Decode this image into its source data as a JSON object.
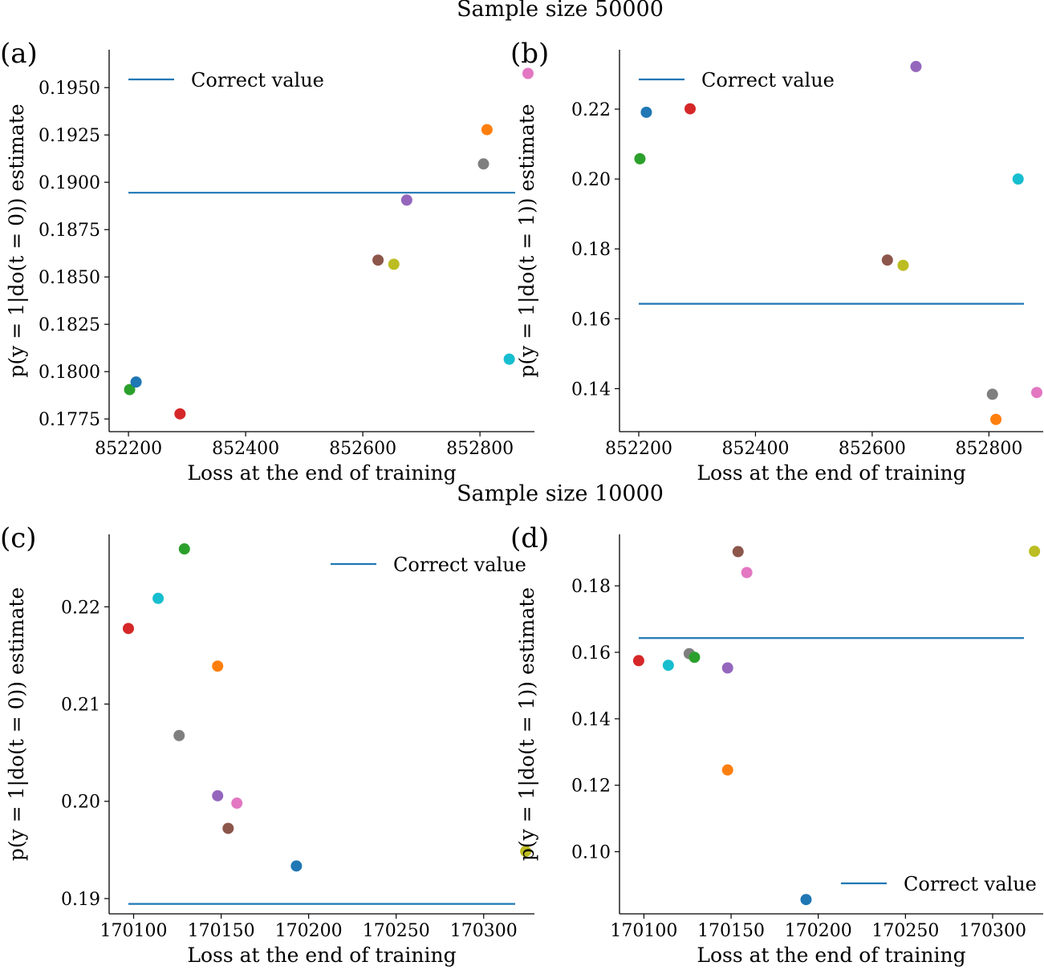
{
  "suptitles": [
    "Sample size 50000",
    "Sample size 10000"
  ],
  "reference_color": "#1f77b4",
  "chart_data": [
    {
      "panel": "(a)",
      "type": "scatter",
      "xlabel": "Loss at the end of training",
      "ylabel": "p(y = 1|do(t = 0)) estimate",
      "xlim": [
        852167,
        852893
      ],
      "ylim": [
        0.17683,
        0.197
      ],
      "xticks": [
        852200,
        852400,
        852600,
        852800
      ],
      "yticks": [
        0.1775,
        0.18,
        0.1825,
        0.185,
        0.1875,
        0.19,
        0.1925,
        0.195
      ],
      "ytick_decimals": 4,
      "reference_line": {
        "label": "Correct value",
        "y": 0.18945
      },
      "legend_position": "top-left",
      "points": [
        {
          "x": 852202,
          "y": 0.17905,
          "color": "#2ca02c"
        },
        {
          "x": 852213,
          "y": 0.17945,
          "color": "#1f77b4"
        },
        {
          "x": 852288,
          "y": 0.17777,
          "color": "#d62728"
        },
        {
          "x": 852626,
          "y": 0.18589,
          "color": "#8c564b"
        },
        {
          "x": 852653,
          "y": 0.18567,
          "color": "#bcbd22"
        },
        {
          "x": 852675,
          "y": 0.18906,
          "color": "#9467bd"
        },
        {
          "x": 852806,
          "y": 0.19097,
          "color": "#7f7f7f"
        },
        {
          "x": 852812,
          "y": 0.19278,
          "color": "#ff7f0e"
        },
        {
          "x": 852850,
          "y": 0.18066,
          "color": "#17becf"
        },
        {
          "x": 852882,
          "y": 0.19575,
          "color": "#e377c2"
        }
      ]
    },
    {
      "panel": "(b)",
      "type": "scatter",
      "xlabel": "Loss at the end of training",
      "ylabel": "p(y = 1|do(t = 1)) estimate",
      "xlim": [
        852167,
        852893
      ],
      "ylim": [
        0.1277,
        0.237
      ],
      "xticks": [
        852200,
        852400,
        852600,
        852800
      ],
      "yticks": [
        0.14,
        0.16,
        0.18,
        0.2,
        0.22
      ],
      "ytick_decimals": 2,
      "reference_line": {
        "label": "Correct value",
        "y": 0.1643
      },
      "legend_position": "top-left",
      "points": [
        {
          "x": 852202,
          "y": 0.2058,
          "color": "#2ca02c"
        },
        {
          "x": 852213,
          "y": 0.2191,
          "color": "#1f77b4"
        },
        {
          "x": 852288,
          "y": 0.2201,
          "color": "#d62728"
        },
        {
          "x": 852626,
          "y": 0.1768,
          "color": "#8c564b"
        },
        {
          "x": 852653,
          "y": 0.1753,
          "color": "#bcbd22"
        },
        {
          "x": 852675,
          "y": 0.2322,
          "color": "#9467bd"
        },
        {
          "x": 852806,
          "y": 0.1384,
          "color": "#7f7f7f"
        },
        {
          "x": 852812,
          "y": 0.1312,
          "color": "#ff7f0e"
        },
        {
          "x": 852850,
          "y": 0.2,
          "color": "#17becf"
        },
        {
          "x": 852882,
          "y": 0.1389,
          "color": "#e377c2"
        }
      ]
    },
    {
      "panel": "(c)",
      "type": "scatter",
      "xlabel": "Loss at the end of training",
      "ylabel": "p(y = 1|do(t = 0)) estimate",
      "xlim": [
        170086,
        170329
      ],
      "ylim": [
        0.18843,
        0.22745
      ],
      "xticks": [
        170100,
        170150,
        170200,
        170250,
        170300
      ],
      "yticks": [
        0.19,
        0.2,
        0.21,
        0.22
      ],
      "ytick_decimals": 2,
      "reference_line": {
        "label": "Correct value",
        "y": 0.18945
      },
      "legend_position": "top-right",
      "points": [
        {
          "x": 170097,
          "y": 0.21777,
          "color": "#d62728"
        },
        {
          "x": 170114,
          "y": 0.22087,
          "color": "#17becf"
        },
        {
          "x": 170126,
          "y": 0.20676,
          "color": "#7f7f7f"
        },
        {
          "x": 170129,
          "y": 0.22595,
          "color": "#2ca02c"
        },
        {
          "x": 170148,
          "y": 0.2139,
          "color": "#ff7f0e"
        },
        {
          "x": 170148,
          "y": 0.20057,
          "color": "#9467bd"
        },
        {
          "x": 170154,
          "y": 0.19722,
          "color": "#8c564b"
        },
        {
          "x": 170159,
          "y": 0.19981,
          "color": "#e377c2"
        },
        {
          "x": 170193,
          "y": 0.19335,
          "color": "#1f77b4"
        },
        {
          "x": 170324,
          "y": 0.19485,
          "color": "#bcbd22"
        }
      ]
    },
    {
      "panel": "(d)",
      "type": "scatter",
      "xlabel": "Loss at the end of training",
      "ylabel": "p(y = 1|do(t = 1)) estimate",
      "xlim": [
        170086,
        170329
      ],
      "ylim": [
        0.0813,
        0.1955
      ],
      "xticks": [
        170100,
        170150,
        170200,
        170250,
        170300
      ],
      "yticks": [
        0.1,
        0.12,
        0.14,
        0.16,
        0.18
      ],
      "ytick_decimals": 2,
      "reference_line": {
        "label": "Correct value",
        "y": 0.1643
      },
      "legend_position": "bottom-right",
      "points": [
        {
          "x": 170097,
          "y": 0.1575,
          "color": "#d62728"
        },
        {
          "x": 170114,
          "y": 0.1561,
          "color": "#17becf"
        },
        {
          "x": 170126,
          "y": 0.1596,
          "color": "#7f7f7f"
        },
        {
          "x": 170129,
          "y": 0.1585,
          "color": "#2ca02c"
        },
        {
          "x": 170148,
          "y": 0.1246,
          "color": "#ff7f0e"
        },
        {
          "x": 170148,
          "y": 0.1553,
          "color": "#9467bd"
        },
        {
          "x": 170154,
          "y": 0.1903,
          "color": "#8c564b"
        },
        {
          "x": 170159,
          "y": 0.184,
          "color": "#e377c2"
        },
        {
          "x": 170193,
          "y": 0.0856,
          "color": "#1f77b4"
        },
        {
          "x": 170324,
          "y": 0.1904,
          "color": "#bcbd22"
        }
      ]
    }
  ]
}
